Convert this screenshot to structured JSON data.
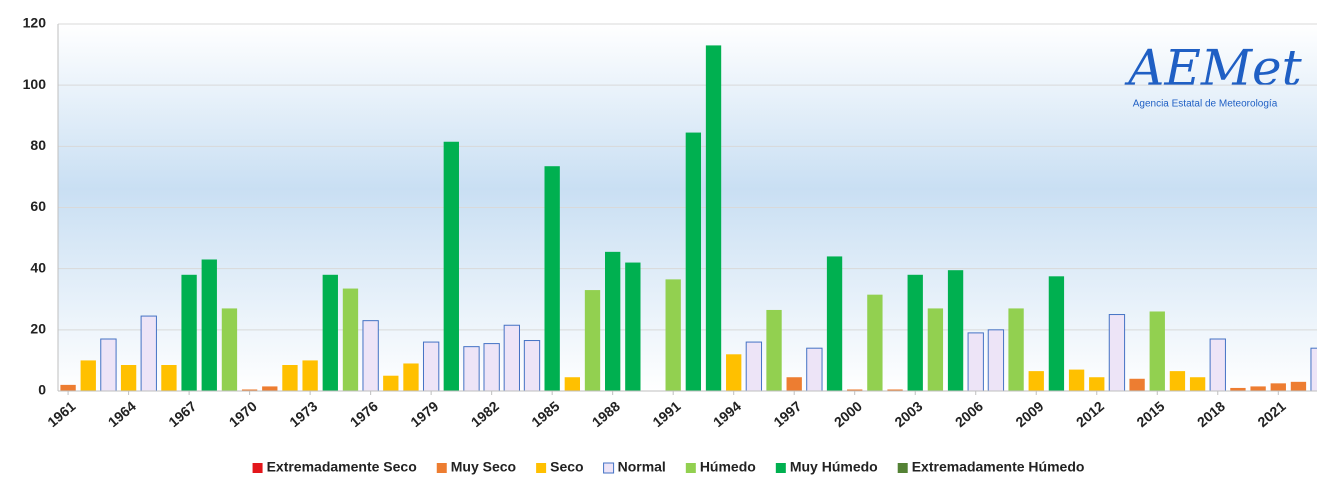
{
  "chart_data": {
    "type": "bar",
    "x": [
      1961,
      1962,
      1963,
      1964,
      1965,
      1966,
      1967,
      1968,
      1969,
      1970,
      1971,
      1972,
      1973,
      1974,
      1975,
      1976,
      1977,
      1978,
      1979,
      1980,
      1981,
      1982,
      1983,
      1984,
      1985,
      1986,
      1987,
      1988,
      1989,
      1990,
      1991,
      1992,
      1993,
      1994,
      1995,
      1996,
      1997,
      1998,
      1999,
      2000,
      2001,
      2002,
      2003,
      2004,
      2005,
      2006,
      2007,
      2008,
      2009,
      2010,
      2011,
      2012,
      2013,
      2014,
      2015,
      2016,
      2017,
      2018,
      2019,
      2020,
      2021,
      2022,
      2023
    ],
    "xlim": [
      1960.5,
      2023.5
    ],
    "xticks": [
      1961,
      1964,
      1967,
      1970,
      1973,
      1976,
      1979,
      1982,
      1985,
      1988,
      1991,
      1994,
      1997,
      2000,
      2003,
      2006,
      2009,
      2012,
      2015,
      2018,
      2021
    ],
    "ylim": [
      0,
      120
    ],
    "yticks": [
      0,
      20,
      40,
      60,
      80,
      100,
      120
    ],
    "grid": true,
    "legend": "bottom",
    "series": [
      {
        "name": "Extremadamente Seco",
        "color": "#e3161b",
        "values": [
          null,
          null,
          null,
          null,
          null,
          null,
          null,
          null,
          null,
          null,
          null,
          null,
          null,
          null,
          null,
          null,
          null,
          null,
          null,
          null,
          null,
          null,
          null,
          null,
          null,
          null,
          null,
          null,
          null,
          null,
          null,
          null,
          null,
          null,
          null,
          null,
          null,
          null,
          null,
          null,
          null,
          null,
          null,
          null,
          null,
          null,
          null,
          null,
          null,
          null,
          null,
          null,
          null,
          null,
          null,
          null,
          null,
          null,
          null,
          null,
          null,
          null,
          null
        ]
      },
      {
        "name": "Muy Seco",
        "color": "#ed7d31",
        "values": [
          2,
          null,
          null,
          null,
          null,
          null,
          null,
          null,
          null,
          0.5,
          1.5,
          null,
          null,
          null,
          null,
          null,
          null,
          null,
          null,
          null,
          null,
          null,
          null,
          null,
          null,
          null,
          null,
          null,
          null,
          null,
          null,
          null,
          null,
          null,
          null,
          null,
          4.5,
          null,
          null,
          0.5,
          null,
          0.5,
          null,
          null,
          null,
          null,
          null,
          null,
          null,
          null,
          null,
          null,
          null,
          4,
          null,
          null,
          null,
          null,
          1,
          1.5,
          2.5,
          3,
          null
        ]
      },
      {
        "name": "Seco",
        "color": "#ffc000",
        "values": [
          null,
          10,
          null,
          8.5,
          null,
          8.5,
          null,
          null,
          null,
          null,
          null,
          8.5,
          10,
          null,
          null,
          null,
          5,
          9,
          null,
          null,
          null,
          null,
          null,
          null,
          null,
          4.5,
          null,
          null,
          null,
          null,
          null,
          null,
          null,
          12,
          null,
          null,
          null,
          null,
          null,
          null,
          null,
          null,
          null,
          null,
          null,
          null,
          null,
          null,
          6.5,
          null,
          7,
          4.5,
          null,
          null,
          null,
          6.5,
          4.5,
          null,
          null,
          null,
          null,
          null,
          null
        ]
      },
      {
        "name": "Normal",
        "color": "#ede4f7",
        "edgecolor": "#4472c4",
        "values": [
          null,
          null,
          17,
          null,
          24.5,
          null,
          null,
          null,
          null,
          null,
          null,
          null,
          null,
          null,
          null,
          23,
          null,
          null,
          16,
          null,
          14.5,
          15.5,
          21.5,
          16.5,
          null,
          null,
          null,
          null,
          null,
          null,
          null,
          null,
          null,
          null,
          16,
          null,
          null,
          14,
          null,
          null,
          null,
          null,
          null,
          null,
          null,
          19,
          20,
          null,
          null,
          null,
          null,
          null,
          25,
          null,
          null,
          null,
          null,
          17,
          null,
          null,
          null,
          null,
          14
        ]
      },
      {
        "name": "Húmedo",
        "color": "#92d050",
        "values": [
          null,
          null,
          null,
          null,
          null,
          null,
          null,
          null,
          27,
          null,
          null,
          null,
          null,
          null,
          33.5,
          null,
          null,
          null,
          null,
          null,
          null,
          null,
          null,
          null,
          null,
          null,
          33,
          null,
          null,
          null,
          36.5,
          null,
          null,
          null,
          null,
          26.5,
          null,
          null,
          null,
          null,
          31.5,
          null,
          null,
          27,
          null,
          null,
          null,
          27,
          null,
          null,
          null,
          null,
          null,
          null,
          26,
          null,
          null,
          null,
          null,
          null,
          null,
          null,
          null
        ]
      },
      {
        "name": "Muy Húmedo",
        "color": "#00b050",
        "values": [
          null,
          null,
          null,
          null,
          null,
          null,
          38,
          43,
          null,
          null,
          null,
          null,
          null,
          38,
          null,
          null,
          null,
          null,
          null,
          81.5,
          null,
          null,
          null,
          null,
          73.5,
          null,
          null,
          45.5,
          42,
          null,
          null,
          84.5,
          113,
          null,
          null,
          null,
          null,
          null,
          44,
          null,
          null,
          null,
          38,
          null,
          39.5,
          null,
          null,
          null,
          null,
          37.5,
          null,
          null,
          null,
          null,
          null,
          null,
          null,
          null,
          null,
          null,
          null,
          null,
          null
        ]
      },
      {
        "name": "Extremadamente Húmedo",
        "color": "#548235",
        "values": [
          null,
          null,
          null,
          null,
          null,
          null,
          null,
          null,
          null,
          null,
          null,
          null,
          null,
          null,
          null,
          null,
          null,
          null,
          null,
          null,
          null,
          null,
          null,
          null,
          null,
          null,
          null,
          null,
          null,
          null,
          null,
          null,
          null,
          null,
          null,
          null,
          null,
          null,
          null,
          null,
          null,
          null,
          null,
          null,
          null,
          null,
          null,
          null,
          null,
          null,
          null,
          null,
          null,
          null,
          null,
          null,
          null,
          null,
          null,
          null,
          null,
          null,
          null
        ]
      }
    ],
    "logo": {
      "text": "AEMet",
      "subtitle": "Agencia Estatal de Meteorología"
    }
  }
}
